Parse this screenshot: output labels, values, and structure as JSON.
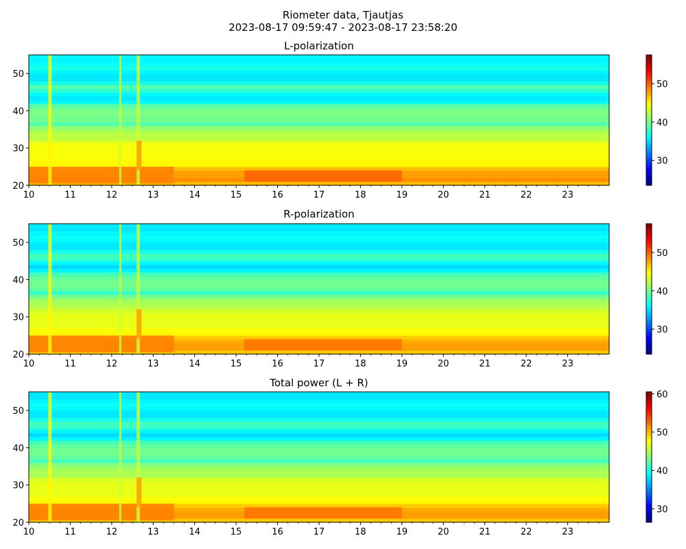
{
  "figure": {
    "title_line1": "Riometer data, Tjautjas",
    "title_line2": "2023-08-17 09:59:47 - 2023-08-17 23:58:20"
  },
  "chart_data": [
    {
      "type": "heatmap",
      "title": "L-polarization",
      "x_range": [
        10,
        24
      ],
      "x_ticks": [
        10,
        11,
        12,
        13,
        14,
        15,
        16,
        17,
        18,
        19,
        20,
        21,
        22,
        23
      ],
      "y_range": [
        20,
        55
      ],
      "y_ticks": [
        20,
        30,
        40,
        50
      ],
      "colorbar": {
        "colormap": "jet",
        "range": [
          23.5,
          57.5
        ],
        "ticks": [
          30,
          40,
          50
        ]
      },
      "row_levels": [
        {
          "y": 20.5,
          "v": 47
        },
        {
          "y": 21.5,
          "v": 48.5
        },
        {
          "y": 22.5,
          "v": 48
        },
        {
          "y": 23.5,
          "v": 48
        },
        {
          "y": 24.5,
          "v": 47
        },
        {
          "y": 25.5,
          "v": 45
        },
        {
          "y": 26.5,
          "v": 45
        },
        {
          "y": 27.5,
          "v": 44.5
        },
        {
          "y": 28.5,
          "v": 44.5
        },
        {
          "y": 29.5,
          "v": 44.5
        },
        {
          "y": 30.5,
          "v": 44.5
        },
        {
          "y": 31.5,
          "v": 44
        },
        {
          "y": 32.5,
          "v": 42.5
        },
        {
          "y": 33.5,
          "v": 42.5
        },
        {
          "y": 34.5,
          "v": 42
        },
        {
          "y": 35.5,
          "v": 41
        },
        {
          "y": 36.5,
          "v": 39
        },
        {
          "y": 37.5,
          "v": 40
        },
        {
          "y": 38.5,
          "v": 40
        },
        {
          "y": 39.5,
          "v": 40.5
        },
        {
          "y": 40.5,
          "v": 40
        },
        {
          "y": 41.5,
          "v": 39
        },
        {
          "y": 42.5,
          "v": 36
        },
        {
          "y": 43.5,
          "v": 35.5
        },
        {
          "y": 44.5,
          "v": 36
        },
        {
          "y": 45.5,
          "v": 38
        },
        {
          "y": 46.5,
          "v": 39
        },
        {
          "y": 47.5,
          "v": 37
        },
        {
          "y": 48.5,
          "v": 35.5
        },
        {
          "y": 49.5,
          "v": 35.5
        },
        {
          "y": 50.5,
          "v": 36
        },
        {
          "y": 51.5,
          "v": 37
        },
        {
          "y": 52.5,
          "v": 36.5
        },
        {
          "y": 53.5,
          "v": 36
        },
        {
          "y": 54.5,
          "v": 36
        }
      ],
      "features": [
        {
          "x": [
            15.2,
            19.0
          ],
          "y": [
            21,
            24
          ],
          "v": 50
        },
        {
          "x": [
            10,
            13.5
          ],
          "y": [
            20.5,
            25
          ],
          "v": 49
        },
        {
          "x": [
            10.47,
            10.55
          ],
          "y": [
            20,
            55
          ],
          "v": 45
        },
        {
          "x": [
            12.18,
            12.23
          ],
          "y": [
            20,
            55
          ],
          "v": 43
        },
        {
          "x": [
            12.6,
            12.68
          ],
          "y": [
            20,
            55
          ],
          "v": 43
        },
        {
          "x": [
            12.6,
            12.72
          ],
          "y": [
            24,
            32
          ],
          "v": 48
        }
      ]
    },
    {
      "type": "heatmap",
      "title": "R-polarization",
      "x_range": [
        10,
        24
      ],
      "x_ticks": [
        10,
        11,
        12,
        13,
        14,
        15,
        16,
        17,
        18,
        19,
        20,
        21,
        22,
        23
      ],
      "y_range": [
        20,
        55
      ],
      "y_ticks": [
        20,
        30,
        40,
        50
      ],
      "colorbar": {
        "colormap": "jet",
        "range": [
          23.5,
          57.5
        ],
        "ticks": [
          30,
          40,
          50
        ]
      },
      "row_levels": [
        {
          "y": 20.5,
          "v": 46.5
        },
        {
          "y": 21.5,
          "v": 48
        },
        {
          "y": 22.5,
          "v": 48
        },
        {
          "y": 23.5,
          "v": 47.5
        },
        {
          "y": 24.5,
          "v": 46.5
        },
        {
          "y": 25.5,
          "v": 45
        },
        {
          "y": 26.5,
          "v": 44.5
        },
        {
          "y": 27.5,
          "v": 44
        },
        {
          "y": 28.5,
          "v": 44
        },
        {
          "y": 29.5,
          "v": 44
        },
        {
          "y": 30.5,
          "v": 44
        },
        {
          "y": 31.5,
          "v": 43.5
        },
        {
          "y": 32.5,
          "v": 42.5
        },
        {
          "y": 33.5,
          "v": 42
        },
        {
          "y": 34.5,
          "v": 41.5
        },
        {
          "y": 35.5,
          "v": 40
        },
        {
          "y": 36.5,
          "v": 38
        },
        {
          "y": 37.5,
          "v": 39.5
        },
        {
          "y": 38.5,
          "v": 40
        },
        {
          "y": 39.5,
          "v": 40
        },
        {
          "y": 40.5,
          "v": 39.5
        },
        {
          "y": 41.5,
          "v": 38.5
        },
        {
          "y": 42.5,
          "v": 36
        },
        {
          "y": 43.5,
          "v": 35
        },
        {
          "y": 44.5,
          "v": 36
        },
        {
          "y": 45.5,
          "v": 38
        },
        {
          "y": 46.5,
          "v": 38.5
        },
        {
          "y": 47.5,
          "v": 37
        },
        {
          "y": 48.5,
          "v": 35.5
        },
        {
          "y": 49.5,
          "v": 35.5
        },
        {
          "y": 50.5,
          "v": 36
        },
        {
          "y": 51.5,
          "v": 36.5
        },
        {
          "y": 52.5,
          "v": 36
        },
        {
          "y": 53.5,
          "v": 35.5
        },
        {
          "y": 54.5,
          "v": 35.5
        }
      ],
      "features": [
        {
          "x": [
            15.2,
            19.0
          ],
          "y": [
            21,
            24
          ],
          "v": 49.5
        },
        {
          "x": [
            10,
            13.5
          ],
          "y": [
            20.5,
            25
          ],
          "v": 49
        },
        {
          "x": [
            10.47,
            10.55
          ],
          "y": [
            20,
            55
          ],
          "v": 45
        },
        {
          "x": [
            12.18,
            12.23
          ],
          "y": [
            20,
            55
          ],
          "v": 43
        },
        {
          "x": [
            12.6,
            12.68
          ],
          "y": [
            20,
            55
          ],
          "v": 43
        },
        {
          "x": [
            12.6,
            12.72
          ],
          "y": [
            24,
            32
          ],
          "v": 48
        }
      ]
    },
    {
      "type": "heatmap",
      "title": "Total power (L + R)",
      "x_range": [
        10,
        24
      ],
      "x_ticks": [
        10,
        11,
        12,
        13,
        14,
        15,
        16,
        17,
        18,
        19,
        20,
        21,
        22,
        23
      ],
      "y_range": [
        20,
        55
      ],
      "y_ticks": [
        20,
        30,
        40,
        50
      ],
      "colorbar": {
        "colormap": "jet",
        "range": [
          26.5,
          60.5
        ],
        "ticks": [
          30,
          40,
          50,
          60
        ]
      },
      "row_levels": [
        {
          "y": 20.5,
          "v": 49.5
        },
        {
          "y": 21.5,
          "v": 51
        },
        {
          "y": 22.5,
          "v": 51
        },
        {
          "y": 23.5,
          "v": 50.5
        },
        {
          "y": 24.5,
          "v": 49.5
        },
        {
          "y": 25.5,
          "v": 48
        },
        {
          "y": 26.5,
          "v": 47.5
        },
        {
          "y": 27.5,
          "v": 47
        },
        {
          "y": 28.5,
          "v": 47
        },
        {
          "y": 29.5,
          "v": 47
        },
        {
          "y": 30.5,
          "v": 47
        },
        {
          "y": 31.5,
          "v": 46.5
        },
        {
          "y": 32.5,
          "v": 45
        },
        {
          "y": 33.5,
          "v": 45
        },
        {
          "y": 34.5,
          "v": 44.5
        },
        {
          "y": 35.5,
          "v": 43.5
        },
        {
          "y": 36.5,
          "v": 41.5
        },
        {
          "y": 37.5,
          "v": 42.5
        },
        {
          "y": 38.5,
          "v": 43
        },
        {
          "y": 39.5,
          "v": 43
        },
        {
          "y": 40.5,
          "v": 42.5
        },
        {
          "y": 41.5,
          "v": 41.5
        },
        {
          "y": 42.5,
          "v": 39
        },
        {
          "y": 43.5,
          "v": 38
        },
        {
          "y": 44.5,
          "v": 39
        },
        {
          "y": 45.5,
          "v": 41
        },
        {
          "y": 46.5,
          "v": 41.5
        },
        {
          "y": 47.5,
          "v": 40
        },
        {
          "y": 48.5,
          "v": 38.5
        },
        {
          "y": 49.5,
          "v": 38.5
        },
        {
          "y": 50.5,
          "v": 39
        },
        {
          "y": 51.5,
          "v": 39.5
        },
        {
          "y": 52.5,
          "v": 39
        },
        {
          "y": 53.5,
          "v": 38.5
        },
        {
          "y": 54.5,
          "v": 38.5
        }
      ],
      "features": [
        {
          "x": [
            15.2,
            19.0
          ],
          "y": [
            21,
            24
          ],
          "v": 52.5
        },
        {
          "x": [
            10,
            13.5
          ],
          "y": [
            20.5,
            25
          ],
          "v": 52
        },
        {
          "x": [
            10.47,
            10.55
          ],
          "y": [
            20,
            55
          ],
          "v": 48
        },
        {
          "x": [
            12.18,
            12.23
          ],
          "y": [
            20,
            55
          ],
          "v": 46
        },
        {
          "x": [
            12.6,
            12.68
          ],
          "y": [
            20,
            55
          ],
          "v": 46
        },
        {
          "x": [
            12.6,
            12.72
          ],
          "y": [
            24,
            32
          ],
          "v": 51
        }
      ]
    }
  ]
}
